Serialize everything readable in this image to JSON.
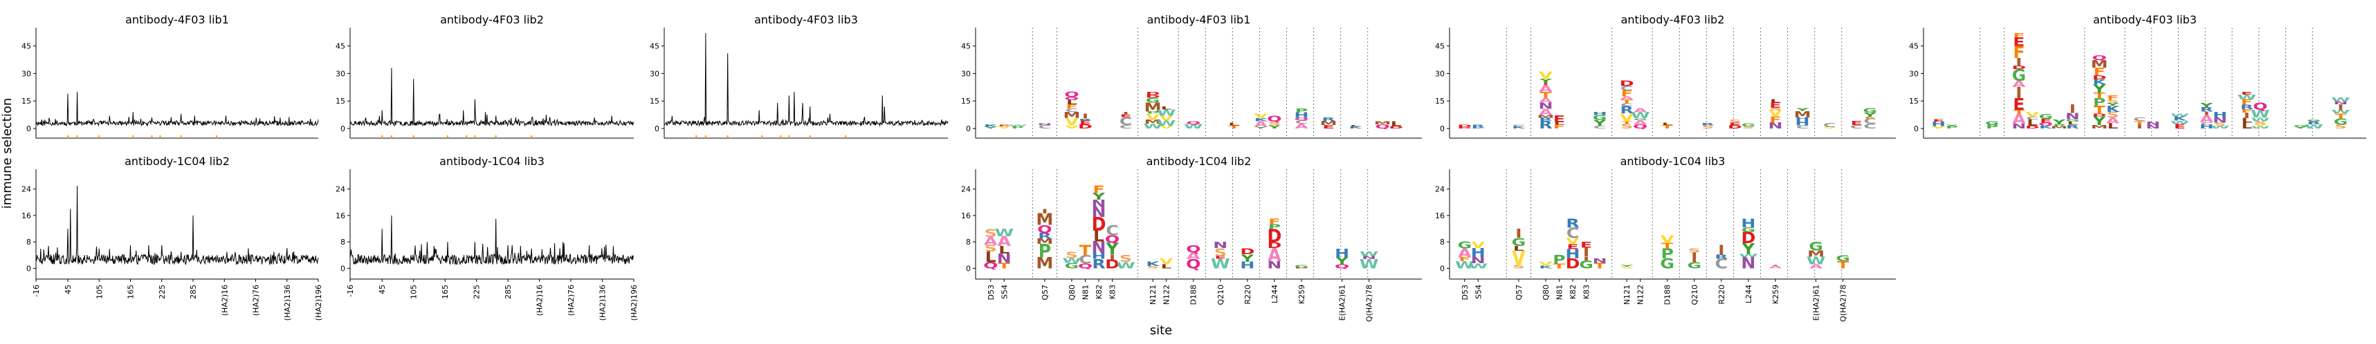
{
  "figure": {
    "ylabel": "immune selection",
    "xlabel": "site"
  },
  "chart_data": [
    {
      "id": "line_4F03_lib1",
      "type": "line",
      "title": "antibody-4F03 lib1",
      "yticks": [
        0,
        15,
        30,
        45
      ],
      "ylim": [
        -3,
        55
      ],
      "xlim": [
        -16,
        525
      ],
      "peaks": [
        [
          45,
          19
        ],
        [
          63,
          20
        ],
        [
          170,
          9
        ],
        [
          206,
          6
        ],
        [
          262,
          8
        ],
        [
          348,
          7
        ],
        [
          452,
          6
        ]
      ],
      "seed": 11
    },
    {
      "id": "line_4F03_lib2",
      "type": "line",
      "title": "antibody-4F03 lib2",
      "yticks": [
        0,
        15,
        30,
        45
      ],
      "ylim": [
        -3,
        55
      ],
      "xlim": [
        -16,
        525
      ],
      "peaks": [
        [
          45,
          10
        ],
        [
          63,
          33
        ],
        [
          105,
          27
        ],
        [
          155,
          8
        ],
        [
          200,
          10
        ],
        [
          222,
          16
        ],
        [
          242,
          9
        ],
        [
          262,
          7
        ],
        [
          300,
          6
        ],
        [
          330,
          5
        ],
        [
          450,
          6
        ]
      ],
      "seed": 23
    },
    {
      "id": "line_4F03_lib3",
      "type": "line",
      "title": "antibody-4F03 lib3",
      "yticks": [
        0,
        15,
        30,
        45
      ],
      "ylim": [
        -3,
        55
      ],
      "xlim": [
        -16,
        525
      ],
      "peaks": [
        [
          63,
          52
        ],
        [
          105,
          41
        ],
        [
          165,
          10
        ],
        [
          200,
          14
        ],
        [
          222,
          18
        ],
        [
          232,
          20
        ],
        [
          248,
          14
        ],
        [
          262,
          12
        ],
        [
          300,
          8
        ],
        [
          400,
          18
        ],
        [
          404,
          12
        ]
      ],
      "seed": 37
    },
    {
      "id": "line_1C04_lib2",
      "type": "line",
      "title": "antibody-1C04 lib2",
      "yticks": [
        0,
        8,
        16,
        24
      ],
      "ylim": [
        -2,
        30
      ],
      "xlim": [
        -16,
        525
      ],
      "xticks": [
        "-16",
        "45",
        "105",
        "165",
        "225",
        "285",
        "(HA2)16",
        "(HA2)76",
        "(HA2)136",
        "(HA2)196"
      ],
      "peaks": [
        [
          45,
          12
        ],
        [
          50,
          18
        ],
        [
          63,
          25
        ],
        [
          105,
          6
        ],
        [
          165,
          7
        ],
        [
          200,
          7
        ],
        [
          225,
          7
        ],
        [
          262,
          5
        ],
        [
          285,
          16
        ],
        [
          350,
          5
        ],
        [
          440,
          5
        ]
      ],
      "seed": 51
    },
    {
      "id": "line_1C04_lib3",
      "type": "line",
      "title": "antibody-1C04 lib3",
      "yticks": [
        0,
        8,
        16,
        24
      ],
      "ylim": [
        -2,
        30
      ],
      "xlim": [
        -16,
        525
      ],
      "xticks": [
        "-16",
        "45",
        "105",
        "165",
        "225",
        "285",
        "(HA2)16",
        "(HA2)76",
        "(HA2)136",
        "(HA2)196"
      ],
      "peaks": [
        [
          45,
          12
        ],
        [
          63,
          16
        ],
        [
          170,
          8
        ],
        [
          222,
          8
        ],
        [
          262,
          15
        ],
        [
          285,
          7
        ],
        [
          330,
          6
        ],
        [
          390,
          8
        ],
        [
          440,
          7
        ]
      ],
      "seed": 67
    },
    {
      "id": "logo_4F03_lib1",
      "type": "logo",
      "title": "antibody-4F03 lib1",
      "yticks": [
        0,
        15,
        30,
        45
      ],
      "ylim": [
        -3,
        55
      ],
      "stacks": [
        [
          0,
          2
        ],
        [
          1,
          2
        ],
        [
          2,
          2
        ],
        [
          4,
          3
        ],
        [
          6,
          20
        ],
        [
          7,
          8
        ],
        [
          10,
          9
        ],
        [
          12,
          20
        ],
        [
          13,
          12
        ],
        [
          15,
          4
        ],
        [
          18,
          3
        ],
        [
          20,
          8
        ],
        [
          21,
          7
        ],
        [
          23,
          11
        ],
        [
          25,
          6
        ],
        [
          27,
          2
        ],
        [
          29,
          4
        ],
        [
          30,
          4
        ]
      ],
      "seed": 101
    },
    {
      "id": "logo_4F03_lib2",
      "type": "logo",
      "title": "antibody-4F03 lib2",
      "yticks": [
        0,
        15,
        30,
        45
      ],
      "ylim": [
        -3,
        55
      ],
      "stacks": [
        [
          0,
          2
        ],
        [
          1,
          2
        ],
        [
          4,
          2
        ],
        [
          6,
          31
        ],
        [
          7,
          7
        ],
        [
          10,
          9
        ],
        [
          12,
          26
        ],
        [
          13,
          11
        ],
        [
          15,
          3
        ],
        [
          18,
          3
        ],
        [
          20,
          5
        ],
        [
          21,
          3
        ],
        [
          23,
          16
        ],
        [
          25,
          11
        ],
        [
          27,
          3
        ],
        [
          29,
          4
        ],
        [
          30,
          11
        ]
      ],
      "seed": 202
    },
    {
      "id": "logo_4F03_lib3",
      "type": "logo",
      "title": "antibody-4F03 lib3",
      "yticks": [
        0,
        15,
        30,
        45
      ],
      "ylim": [
        -3,
        55
      ],
      "stacks": [
        [
          0,
          5
        ],
        [
          1,
          2
        ],
        [
          4,
          4
        ],
        [
          6,
          52
        ],
        [
          7,
          9
        ],
        [
          8,
          8
        ],
        [
          9,
          5
        ],
        [
          10,
          13
        ],
        [
          12,
          40
        ],
        [
          13,
          18
        ],
        [
          15,
          6
        ],
        [
          16,
          4
        ],
        [
          18,
          8
        ],
        [
          20,
          14
        ],
        [
          21,
          9
        ],
        [
          23,
          20
        ],
        [
          24,
          14
        ],
        [
          27,
          2
        ],
        [
          28,
          5
        ],
        [
          30,
          17
        ]
      ],
      "seed": 303
    },
    {
      "id": "logo_1C04_lib2",
      "type": "logo",
      "title": "antibody-1C04 lib2",
      "yticks": [
        0,
        8,
        16,
        24
      ],
      "ylim": [
        -2,
        30
      ],
      "sites": [
        "D53",
        "S54",
        "Q57",
        "Q80",
        "N81",
        "K82",
        "K83",
        "N121",
        "N122",
        "D188",
        "Q210",
        "R220",
        "L244",
        "K259",
        "E(HA2)61",
        "Q(HA2)78"
      ],
      "stacks": [
        [
          0,
          12
        ],
        [
          1,
          12
        ],
        [
          4,
          18
        ],
        [
          6,
          5
        ],
        [
          7,
          7
        ],
        [
          8,
          25
        ],
        [
          9,
          13
        ],
        [
          10,
          4
        ],
        [
          12,
          2
        ],
        [
          13,
          3
        ],
        [
          15,
          7
        ],
        [
          17,
          8
        ],
        [
          19,
          6
        ],
        [
          21,
          15
        ],
        [
          23,
          1
        ],
        [
          26,
          6
        ],
        [
          28,
          5
        ]
      ],
      "seed": 404
    },
    {
      "id": "logo_1C04_lib3",
      "type": "logo",
      "title": "antibody-1C04 lib3",
      "yticks": [
        0,
        8,
        16,
        24
      ],
      "ylim": [
        -2,
        30
      ],
      "sites": [
        "D53",
        "S54",
        "Q57",
        "Q80",
        "N81",
        "K82",
        "K83",
        "N121",
        "N122",
        "D188",
        "Q210",
        "R220",
        "L244",
        "K259",
        "E(HA2)61",
        "Q(HA2)78"
      ],
      "stacks": [
        [
          0,
          8
        ],
        [
          1,
          8
        ],
        [
          4,
          12
        ],
        [
          6,
          2
        ],
        [
          7,
          4
        ],
        [
          8,
          15
        ],
        [
          9,
          8
        ],
        [
          10,
          3
        ],
        [
          12,
          1
        ],
        [
          15,
          10
        ],
        [
          17,
          6
        ],
        [
          19,
          7
        ],
        [
          21,
          15
        ],
        [
          23,
          1
        ],
        [
          26,
          8
        ],
        [
          28,
          4
        ]
      ],
      "seed": 505
    }
  ]
}
